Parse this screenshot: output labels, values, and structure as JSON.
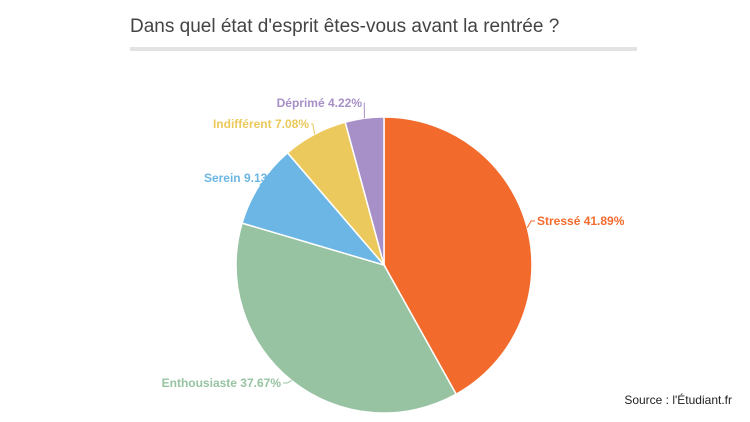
{
  "chart_data": {
    "type": "pie",
    "title": "Dans quel état d'esprit êtes-vous avant la rentrée ?",
    "slices": [
      {
        "label": "Stressé",
        "value": 41.89,
        "display": "Stressé 41.89%",
        "color": "#f26b2d"
      },
      {
        "label": "Enthousiaste",
        "value": 37.67,
        "display": "Enthousiaste 37.67%",
        "color": "#97c3a2"
      },
      {
        "label": "Serein",
        "value": 9.13,
        "display": "Serein 9.13%",
        "color": "#6cb6e6"
      },
      {
        "label": "Indifférent",
        "value": 7.08,
        "display": "Indifférent 7.08%",
        "color": "#ecc95c"
      },
      {
        "label": "Déprimé",
        "value": 4.22,
        "display": "Déprimé 4.22%",
        "color": "#a78fc8"
      }
    ]
  },
  "source": "Source : l'Étudiant.fr"
}
